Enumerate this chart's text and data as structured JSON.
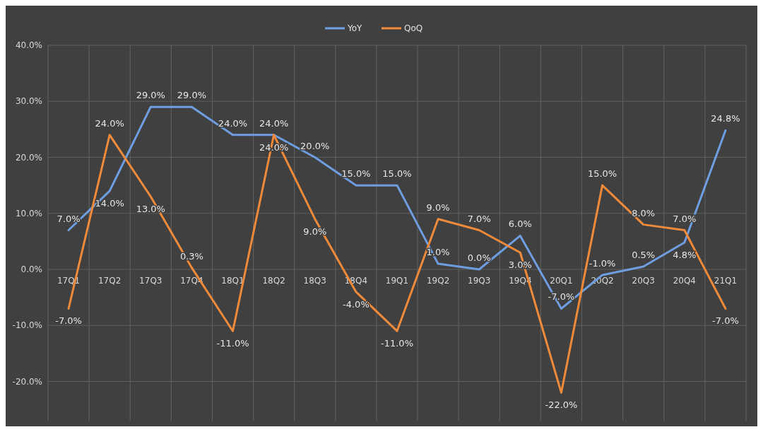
{
  "chart_data": {
    "type": "line",
    "categories": [
      "17Q1",
      "17Q2",
      "17Q3",
      "17Q4",
      "18Q1",
      "18Q2",
      "18Q3",
      "18Q4",
      "19Q1",
      "19Q2",
      "19Q3",
      "19Q4",
      "20Q1",
      "20Q2",
      "20Q3",
      "20Q4",
      "21Q1"
    ],
    "series": [
      {
        "name": "YoY",
        "color": "#6f9ee0",
        "values": [
          7,
          14,
          29,
          29,
          24,
          24,
          20,
          15,
          15,
          1,
          0,
          6,
          -7,
          -1,
          0.5,
          4.8,
          24.8
        ],
        "value_labels": [
          "7.0%",
          "14.0%",
          "29.0%",
          "29.0%",
          "24.0%",
          "24.0%",
          "20.0%",
          "15.0%",
          "15.0%",
          "1.0%",
          "0.0%",
          "6.0%",
          "-7.0%",
          "-1.0%",
          "0.5%",
          "4.8%",
          "24.8%"
        ]
      },
      {
        "name": "QoQ",
        "color": "#ef8a3a",
        "values": [
          -7,
          24,
          13,
          0.3,
          -11,
          24,
          9,
          -4,
          -11,
          9,
          7,
          3,
          -22,
          15,
          8,
          7,
          -7
        ],
        "value_labels": [
          "-7.0%",
          "24.0%",
          "13.0%",
          "0.3%",
          "-11.0%",
          "24.0%",
          "9.0%",
          "-4.0%",
          "-11.0%",
          "9.0%",
          "7.0%",
          "3.0%",
          "-22.0%",
          "15.0%",
          "8.0%",
          "7.0%",
          "-7.0%"
        ]
      }
    ],
    "ylim": [
      -27,
      40
    ],
    "yticks": [
      {
        "value": -20,
        "label": "-20.0%"
      },
      {
        "value": -10,
        "label": "-10.0%"
      },
      {
        "value": 0,
        "label": "0.0%"
      },
      {
        "value": 10,
        "label": "10.0%"
      },
      {
        "value": 20,
        "label": "20.0%"
      },
      {
        "value": 30,
        "label": "30.0%"
      },
      {
        "value": 40,
        "label": "40.0%"
      }
    ],
    "grid": true,
    "legend": "top",
    "marker": "none",
    "line_style": "solid"
  }
}
